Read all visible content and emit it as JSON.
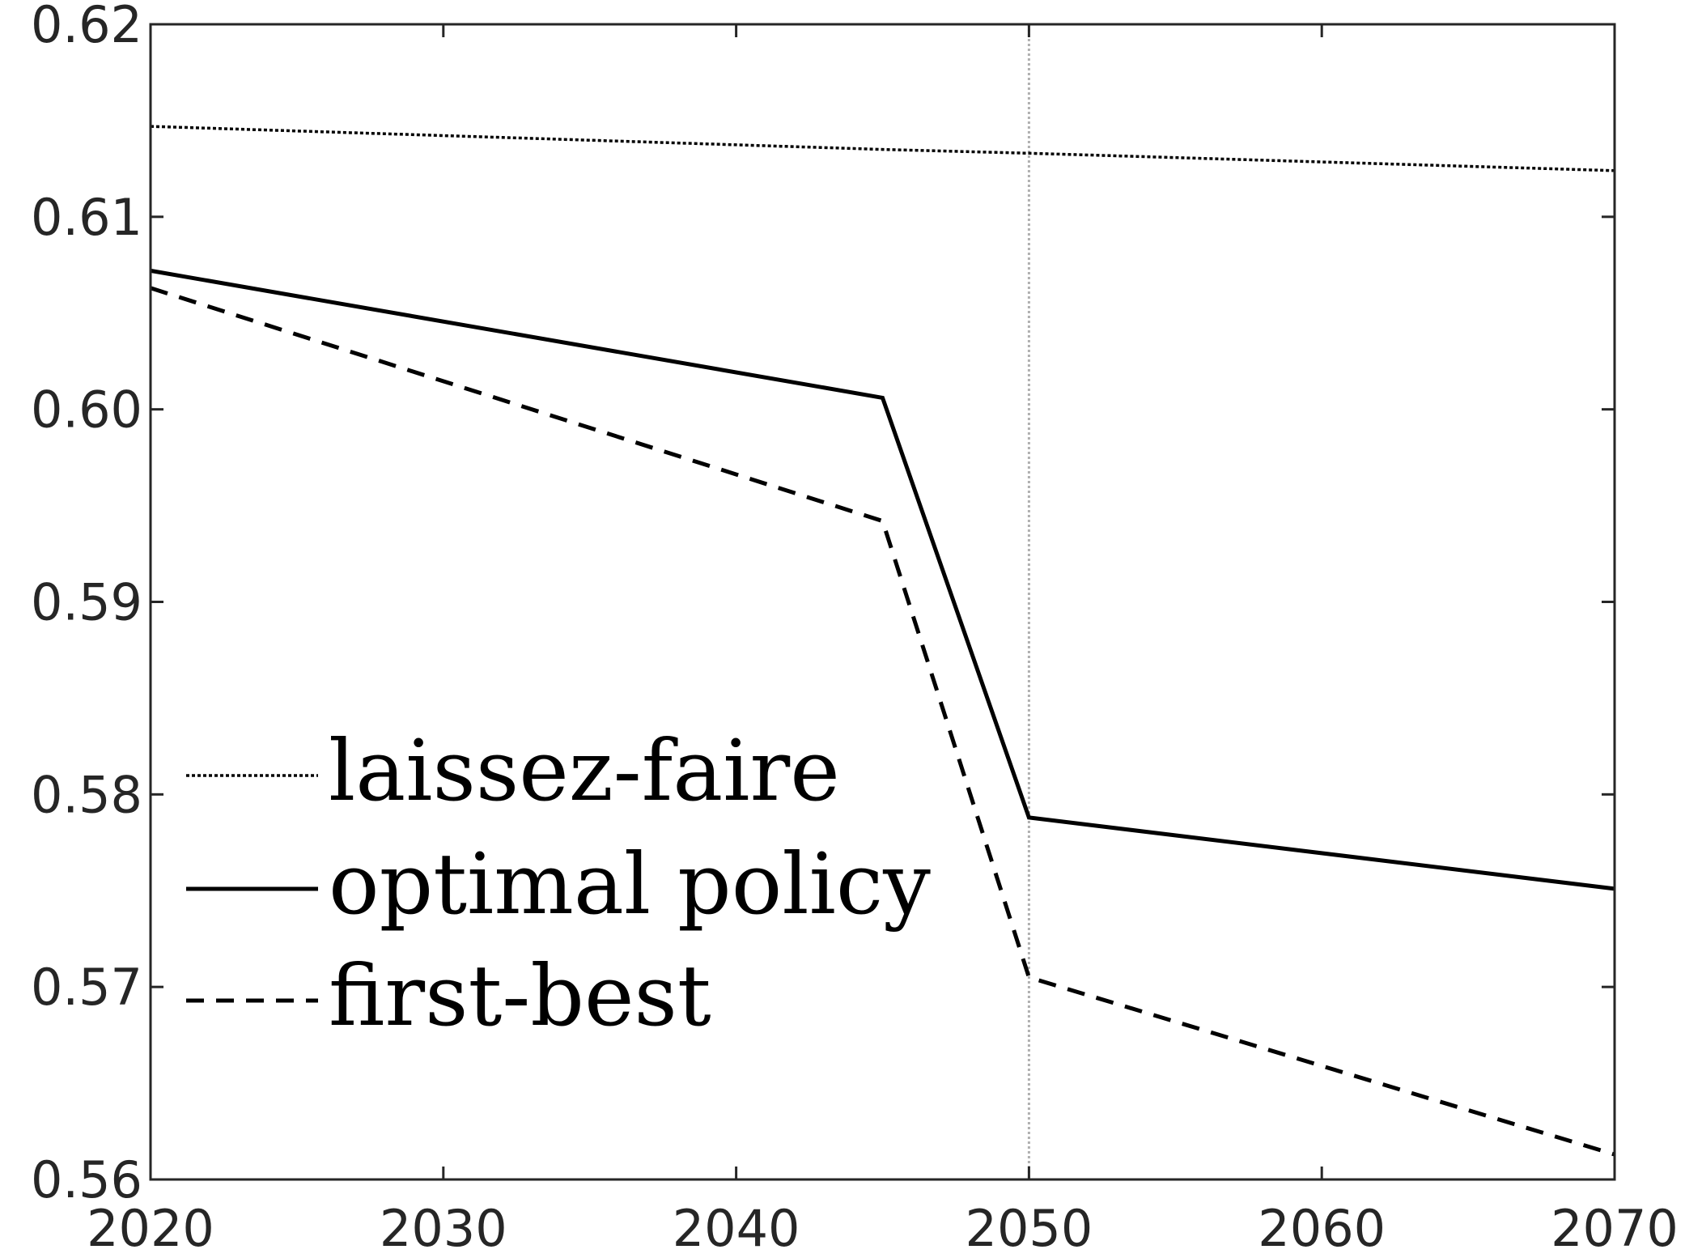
{
  "chart_data": {
    "type": "line",
    "title": "",
    "xlabel": "",
    "ylabel": "",
    "xlim": [
      2020,
      2070
    ],
    "ylim": [
      0.56,
      0.62
    ],
    "x_ticks": [
      "2020",
      "2030",
      "2040",
      "2050",
      "2060",
      "2070"
    ],
    "y_ticks": [
      "0.56",
      "0.57",
      "0.58",
      "0.59",
      "0.60",
      "0.61",
      "0.62"
    ],
    "grid": false,
    "vertical_reference_line": {
      "x": 2050,
      "color": "#b0b0b0",
      "style": "dotted"
    },
    "legend_position": "lower-left",
    "series": [
      {
        "name": "laissez-faire",
        "style": "dotted",
        "color": "#000000",
        "x": [
          2020,
          2045,
          2050,
          2070
        ],
        "values": [
          0.6147,
          0.6135,
          0.6133,
          0.6124
        ]
      },
      {
        "name": "optimal policy",
        "style": "solid",
        "color": "#000000",
        "x": [
          2020,
          2045,
          2050,
          2070
        ],
        "values": [
          0.6072,
          0.6006,
          0.5788,
          0.5751
        ]
      },
      {
        "name": "first-best",
        "style": "dashed",
        "color": "#000000",
        "x": [
          2020,
          2045,
          2050,
          2070
        ],
        "values": [
          0.6063,
          0.5942,
          0.5705,
          0.5613
        ]
      }
    ]
  }
}
